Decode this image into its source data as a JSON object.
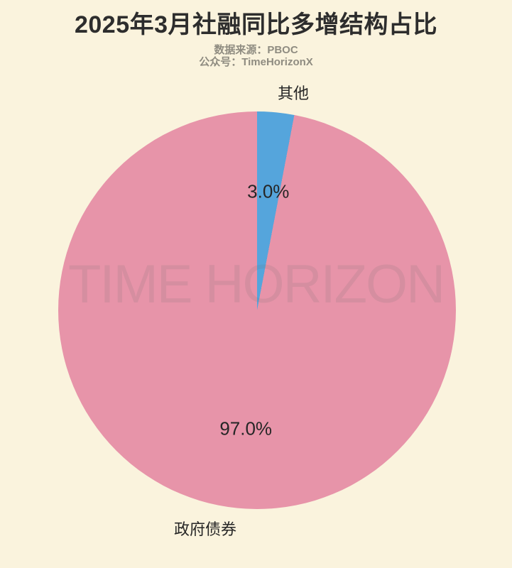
{
  "header": {
    "title": "2025年3月社融同比多增结构占比",
    "source_line": "数据来源：PBOC",
    "account_line": "公众号：TimeHorizonX"
  },
  "watermark": "TIME HORIZON",
  "colors": {
    "background": "#FAF3DD",
    "title_text": "#2D2D2D",
    "subtitle_text": "#8F8C81",
    "label_text": "#262626",
    "slice_other": "#55A5DC",
    "slice_gov_bonds": "#E794A9"
  },
  "chart_data": {
    "type": "pie",
    "title": "2025年3月社融同比多增结构占比",
    "subtitle": [
      "数据来源：PBOC",
      "公众号：TimeHorizonX"
    ],
    "categories": [
      "其他",
      "政府债券"
    ],
    "values": [
      3.0,
      97.0
    ],
    "slices": [
      {
        "label": "其他",
        "value": 3.0,
        "pct_label": "3.0%",
        "color": "#55A5DC"
      },
      {
        "label": "政府债券",
        "value": 97.0,
        "pct_label": "97.0%",
        "color": "#E794A9"
      }
    ],
    "unit": "%",
    "start_angle_deg": 90,
    "direction": "clockwise",
    "label_distance": 1.1,
    "pct_distance": 0.6,
    "legend": "none",
    "grid": false,
    "watermark": "TIME HORIZON"
  }
}
